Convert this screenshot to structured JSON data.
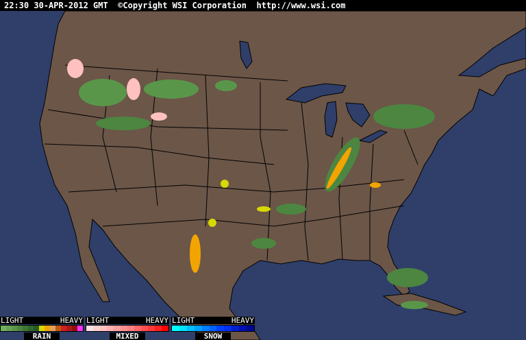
{
  "header": {
    "text": "22:30 30-APR-2012 GMT  ©Copyright WSI Corporation  http://www.wsi.com"
  },
  "colors": {
    "ocean": "#2f3f6a",
    "land": "#6b5648",
    "border": "#000000"
  },
  "legend": [
    {
      "name": "RAIN",
      "light": "LIGHT",
      "heavy": "HEAVY",
      "swatches": [
        "#74b25e",
        "#68a454",
        "#5a964a",
        "#4c8640",
        "#3f7636",
        "#33682c",
        "#2a5a24",
        "#d6d800",
        "#f2a400",
        "#e2a060",
        "#c05a10",
        "#d02020",
        "#b01818",
        "#901010",
        "#ff30ff"
      ]
    },
    {
      "name": "MIXED",
      "light": "LIGHT",
      "heavy": "HEAVY",
      "swatches": [
        "#ffe0e0",
        "#ffd0d0",
        "#ffc0c0",
        "#ffb0b0",
        "#ffa0a0",
        "#ff9090",
        "#ff8080",
        "#ff6868",
        "#ff5050",
        "#ff3838",
        "#ff2020",
        "#ff0000"
      ]
    },
    {
      "name": "SNOW",
      "light": "LIGHT",
      "heavy": "HEAVY",
      "swatches": [
        "#00ffff",
        "#00e0ff",
        "#00c0ff",
        "#00a0ff",
        "#0080ff",
        "#0060ff",
        "#0040ff",
        "#0030f0",
        "#0020d0",
        "#0010b0",
        "#000890"
      ]
    }
  ]
}
